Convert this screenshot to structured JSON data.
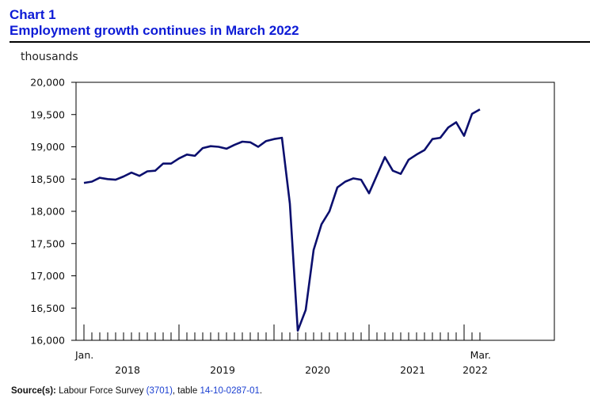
{
  "header": {
    "chart_number": "Chart 1",
    "title": "Employment growth continues in March 2022"
  },
  "source": {
    "label": "Source(s):",
    "text_before": " Labour Force Survey ",
    "code": "(3701)",
    "text_middle": ", table ",
    "table": "14-10-0287-01",
    "text_after": "."
  },
  "colors": {
    "line": "#0b0f6e",
    "title": "#0d1bd6"
  },
  "chart_data": {
    "type": "line",
    "title": "Employment growth continues in March 2022",
    "ylabel": "thousands",
    "xlabel": "",
    "ylim": [
      16000,
      20000
    ],
    "y_ticks": [
      16000,
      16500,
      17000,
      17500,
      18000,
      18500,
      19000,
      19500,
      20000
    ],
    "y_tick_labels": [
      "16,000",
      "16,500",
      "17,000",
      "17,500",
      "18,000",
      "18,500",
      "19,000",
      "19,500",
      "20,000"
    ],
    "x_start_label": "Jan.",
    "x_end_label": "Mar.",
    "year_labels": [
      "2018",
      "2019",
      "2020",
      "2021",
      "2022"
    ],
    "grid": false,
    "x": [
      "2018-01",
      "2018-02",
      "2018-03",
      "2018-04",
      "2018-05",
      "2018-06",
      "2018-07",
      "2018-08",
      "2018-09",
      "2018-10",
      "2018-11",
      "2018-12",
      "2019-01",
      "2019-02",
      "2019-03",
      "2019-04",
      "2019-05",
      "2019-06",
      "2019-07",
      "2019-08",
      "2019-09",
      "2019-10",
      "2019-11",
      "2019-12",
      "2020-01",
      "2020-02",
      "2020-03",
      "2020-04",
      "2020-05",
      "2020-06",
      "2020-07",
      "2020-08",
      "2020-09",
      "2020-10",
      "2020-11",
      "2020-12",
      "2021-01",
      "2021-02",
      "2021-03",
      "2021-04",
      "2021-05",
      "2021-06",
      "2021-07",
      "2021-08",
      "2021-09",
      "2021-10",
      "2021-11",
      "2021-12",
      "2022-01",
      "2022-02",
      "2022-03"
    ],
    "series": [
      {
        "values": [
          18440,
          18460,
          18520,
          18500,
          18490,
          18540,
          18600,
          18550,
          18620,
          18630,
          18740,
          18740,
          18820,
          18880,
          18860,
          18980,
          19010,
          19000,
          18970,
          19030,
          19080,
          19070,
          19000,
          19090,
          19120,
          19140,
          18120,
          16150,
          16470,
          17400,
          17800,
          18000,
          18370,
          18460,
          18510,
          18490,
          18280,
          18560,
          18840,
          18630,
          18580,
          18800,
          18880,
          18950,
          19120,
          19140,
          19300,
          19380,
          19170,
          19510,
          19580
        ]
      }
    ]
  }
}
